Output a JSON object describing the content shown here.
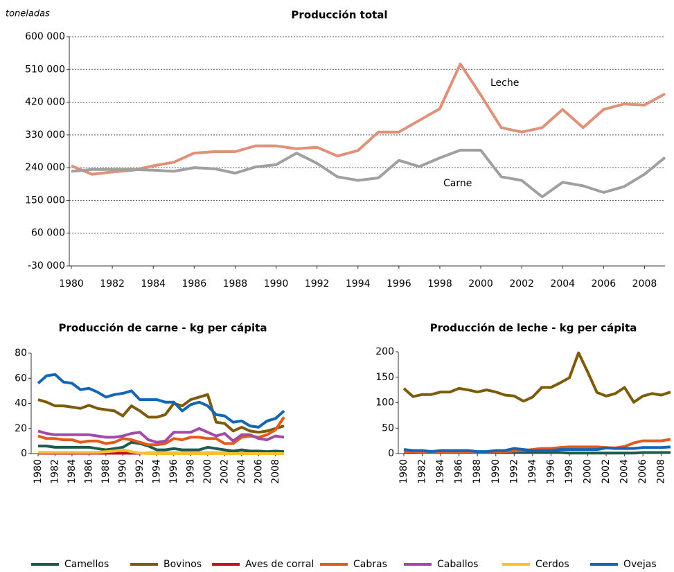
{
  "chart_data": [
    {
      "type": "line",
      "title": "Producción total",
      "ylabel": "toneladas",
      "x": [
        1980,
        1981,
        1982,
        1983,
        1984,
        1985,
        1986,
        1987,
        1988,
        1989,
        1990,
        1991,
        1992,
        1993,
        1994,
        1995,
        1996,
        1997,
        1998,
        1999,
        2000,
        2001,
        2002,
        2003,
        2004,
        2005,
        2006,
        2007,
        2008,
        2009
      ],
      "xticks": [
        1980,
        1982,
        1984,
        1986,
        1988,
        1990,
        1992,
        1994,
        1996,
        1998,
        2000,
        2002,
        2004,
        2006,
        2008
      ],
      "xlim": [
        1980,
        2009
      ],
      "ylim": [
        -30000,
        600000
      ],
      "yticks": [
        {
          "value": -30000,
          "label": "-30 000"
        },
        {
          "value": 60000,
          "label": "60 000"
        },
        {
          "value": 150000,
          "label": "150 000"
        },
        {
          "value": 240000,
          "label": "240 000"
        },
        {
          "value": 330000,
          "label": "330 000"
        },
        {
          "value": 420000,
          "label": "420 000"
        },
        {
          "value": 510000,
          "label": "510 000"
        },
        {
          "value": 600000,
          "label": "600 000"
        }
      ],
      "grid": true,
      "series": [
        {
          "name": "Leche",
          "color": "#e0917a",
          "values": [
            245000,
            222000,
            228000,
            233000,
            245000,
            255000,
            280000,
            284000,
            284000,
            300000,
            300000,
            292000,
            296000,
            272000,
            287000,
            338000,
            338000,
            370000,
            402000,
            525000,
            440000,
            350000,
            338000,
            350000,
            400000,
            350000,
            400000,
            415000,
            412000,
            443000
          ]
        },
        {
          "name": "Carne",
          "color": "#a0a0a0",
          "values": [
            230000,
            235000,
            235000,
            235000,
            233000,
            230000,
            240000,
            237000,
            225000,
            242000,
            248000,
            280000,
            252000,
            215000,
            205000,
            212000,
            260000,
            243000,
            267000,
            288000,
            288000,
            215000,
            205000,
            160000,
            200000,
            190000,
            172000,
            188000,
            222000,
            268000
          ]
        }
      ]
    },
    {
      "type": "line",
      "title": "Producción de carne - kg per cápita",
      "x": [
        1980,
        1981,
        1982,
        1983,
        1984,
        1985,
        1986,
        1987,
        1988,
        1989,
        1990,
        1991,
        1992,
        1993,
        1994,
        1995,
        1996,
        1997,
        1998,
        1999,
        2000,
        2001,
        2002,
        2003,
        2004,
        2005,
        2006,
        2007,
        2008,
        2009
      ],
      "xticks": [
        1980,
        1982,
        1984,
        1986,
        1988,
        1990,
        1992,
        1994,
        1996,
        1998,
        2000,
        2002,
        2004,
        2006,
        2008
      ],
      "xlim": [
        1980,
        2009
      ],
      "ylim": [
        0,
        80
      ],
      "yticks": [
        0,
        20,
        40,
        60,
        80
      ],
      "grid": false,
      "series": [
        {
          "name": "Camellos",
          "color": "#1f5a4e",
          "values": [
            6,
            6,
            5,
            5,
            5,
            5,
            5,
            4,
            3,
            4,
            5,
            9,
            8,
            6,
            3,
            3,
            4,
            3,
            3,
            3,
            5,
            4,
            3,
            2,
            3,
            2,
            2,
            1.5,
            2,
            1.5
          ]
        },
        {
          "name": "Bovinos",
          "color": "#7d5b0c",
          "values": [
            43,
            41,
            38,
            38,
            37,
            36,
            38.5,
            36,
            35,
            34,
            30,
            38,
            34,
            29,
            29,
            31,
            40,
            38,
            43,
            45,
            47,
            25,
            24,
            18,
            21,
            18,
            17,
            18,
            20,
            22
          ]
        },
        {
          "name": "Aves de corral",
          "color": "#c0141c",
          "values": [
            0.3,
            0.3,
            0.3,
            0.3,
            0.3,
            0.3,
            0.3,
            0.3,
            0.3,
            0.3,
            0.3,
            0.3,
            0.3,
            0.3,
            0.3,
            0.3,
            0.3,
            0.3,
            0.3,
            0.3,
            0.3,
            0.3,
            0.3,
            0.3,
            0.3,
            0.3,
            0.3,
            0.3,
            0.3,
            0.3
          ]
        },
        {
          "name": "Cabras",
          "color": "#e35a1f",
          "values": [
            14,
            12,
            12,
            11,
            11,
            9,
            10,
            10,
            8,
            9,
            12,
            11,
            9,
            7,
            7,
            8,
            12,
            11,
            13,
            13,
            12,
            12,
            8,
            8,
            13,
            14,
            13,
            15,
            19,
            29
          ]
        },
        {
          "name": "Caballos",
          "color": "#a24aa8",
          "values": [
            18,
            16,
            15,
            15,
            15,
            15,
            15,
            14,
            13,
            13,
            14,
            16,
            17,
            11,
            9,
            10,
            17,
            17,
            17,
            20,
            17,
            14,
            16,
            10,
            15,
            15,
            12,
            11,
            14,
            13
          ]
        },
        {
          "name": "Cerdos",
          "color": "#fbc02d",
          "values": [
            1,
            1,
            1,
            1,
            1,
            1,
            1,
            1,
            1.5,
            2,
            3,
            1.5,
            0.5,
            0,
            0,
            0,
            0,
            0,
            0,
            0,
            0,
            0,
            0,
            0,
            0,
            0,
            0,
            0,
            0,
            0
          ]
        },
        {
          "name": "Ovejas",
          "color": "#1565b5",
          "values": [
            56,
            62,
            63,
            57,
            56,
            51,
            52,
            49,
            45,
            47,
            48,
            50,
            43,
            43,
            43,
            41,
            41,
            34,
            39,
            41,
            38,
            31,
            30,
            25,
            26,
            22,
            21,
            26,
            28,
            34
          ]
        }
      ]
    },
    {
      "type": "line",
      "title": "Producción de leche - kg per cápita",
      "x": [
        1980,
        1981,
        1982,
        1983,
        1984,
        1985,
        1986,
        1987,
        1988,
        1989,
        1990,
        1991,
        1992,
        1993,
        1994,
        1995,
        1996,
        1997,
        1998,
        1999,
        2000,
        2001,
        2002,
        2003,
        2004,
        2005,
        2006,
        2007,
        2008,
        2009
      ],
      "xticks": [
        1980,
        1982,
        1984,
        1986,
        1988,
        1990,
        1992,
        1994,
        1996,
        1998,
        2000,
        2002,
        2004,
        2006,
        2008
      ],
      "xlim": [
        1980,
        2009
      ],
      "ylim": [
        0,
        200
      ],
      "yticks": [
        0,
        50,
        100,
        150,
        200
      ],
      "grid": false,
      "series": [
        {
          "name": "Camellos",
          "color": "#1f5a4e",
          "values": [
            2,
            2,
            2,
            2,
            2,
            2,
            2,
            2,
            2,
            2,
            2,
            2,
            2,
            2,
            2,
            2,
            2,
            2,
            1,
            1,
            1,
            1,
            1,
            1,
            1,
            1,
            2,
            2,
            2,
            2
          ]
        },
        {
          "name": "Bovinos",
          "color": "#7d5b0c",
          "values": [
            128,
            112,
            116,
            116,
            121,
            121,
            128,
            125,
            121,
            125,
            121,
            115,
            113,
            103,
            111,
            130,
            130,
            139,
            149,
            198,
            160,
            120,
            113,
            118,
            130,
            101,
            113,
            118,
            115,
            121
          ]
        },
        {
          "name": "Cabras",
          "color": "#e35a1f",
          "values": [
            4,
            4,
            3,
            3,
            3,
            3,
            3,
            3,
            3,
            3,
            4,
            4,
            5,
            6,
            8,
            10,
            10,
            12,
            13,
            13,
            13,
            13,
            12,
            11,
            14,
            21,
            25,
            25,
            25,
            28
          ]
        },
        {
          "name": "Ovejas",
          "color": "#1565b5",
          "values": [
            8,
            6,
            6,
            4,
            6,
            6,
            6,
            6,
            4,
            4,
            6,
            6,
            10,
            8,
            6,
            6,
            6,
            8,
            8,
            8,
            8,
            8,
            11,
            10,
            10,
            10,
            12,
            12,
            12,
            13
          ]
        }
      ]
    }
  ]
}
